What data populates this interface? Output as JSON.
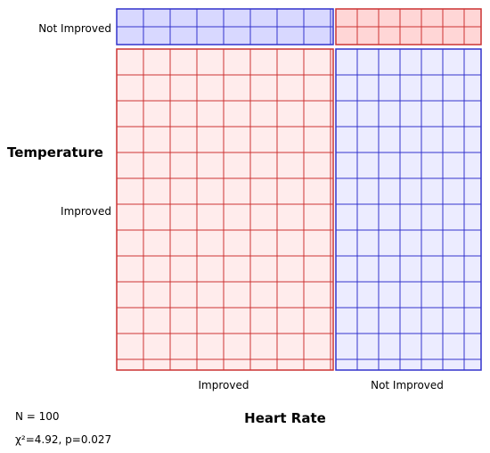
{
  "chart_data": {
    "type": "mosaic",
    "xlabel": "Heart Rate",
    "ylabel": "Temperature",
    "x_categories": [
      "Improved",
      "Not Improved"
    ],
    "y_categories": [
      "Not Improved",
      "Improved"
    ],
    "counts": [
      {
        "x": "Improved",
        "y": "Not Improved",
        "count": 8
      },
      {
        "x": "Improved",
        "y": "Improved",
        "count": 48
      },
      {
        "x": "Not Improved",
        "y": "Not Improved",
        "count": 4
      },
      {
        "x": "Not Improved",
        "y": "Improved",
        "count": 40
      }
    ],
    "annotations": {
      "n": "N = 100",
      "stat": "χ²=4.92, p=0.027"
    },
    "colors": {
      "red_stroke": "#cc3333",
      "red_fill": "#ffecec",
      "red_header_fill": "#ffd6d6",
      "blue_stroke": "#3333cc",
      "blue_fill": "#ececff",
      "blue_header_fill": "#d8d8ff"
    }
  }
}
